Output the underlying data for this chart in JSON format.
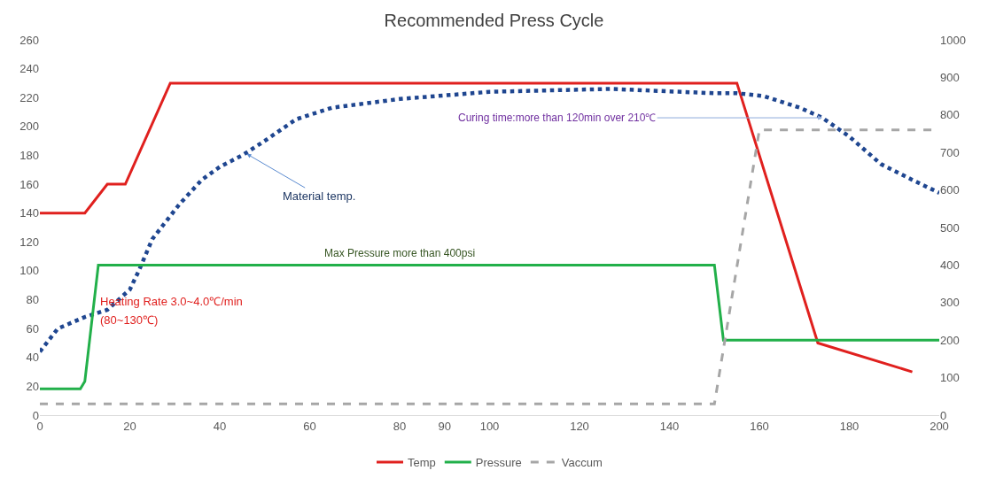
{
  "chart_data": {
    "type": "line",
    "title": "Recommended Press Cycle",
    "xlim": [
      0,
      200
    ],
    "xticks": [
      0,
      20,
      40,
      60,
      80,
      90,
      100,
      120,
      140,
      160,
      180,
      200
    ],
    "ylim": [
      0,
      260
    ],
    "yticks": [
      0,
      20,
      40,
      60,
      80,
      100,
      120,
      140,
      160,
      180,
      200,
      220,
      240,
      260
    ],
    "y2lim": [
      0,
      1000
    ],
    "y2ticks": [
      0,
      100,
      200,
      300,
      400,
      500,
      600,
      700,
      800,
      900,
      1000
    ],
    "legend": "bottom",
    "marker": "none",
    "series": [
      {
        "name": "Temp",
        "color": "#e0201e",
        "line_style": "solid",
        "x": [
          0,
          10,
          15,
          19,
          29,
          155,
          173,
          194
        ],
        "values": [
          140,
          140,
          160,
          160,
          230,
          230,
          50,
          30
        ]
      },
      {
        "name": "Pressure",
        "color": "#22b04a",
        "line_style": "solid",
        "axis": "y2",
        "x": [
          0,
          9,
          10,
          13,
          150,
          152,
          200
        ],
        "values": [
          70,
          70,
          90,
          400,
          400,
          200,
          200
        ]
      },
      {
        "name": "Vaccum",
        "color": "#a6a6a6",
        "line_style": "dashed",
        "axis": "y2",
        "x": [
          0,
          150,
          160,
          200
        ],
        "values": [
          30,
          30,
          760,
          760
        ]
      },
      {
        "color": "#1f4690",
        "line_style": "dotted",
        "x": [
          0,
          4,
          10,
          15,
          20,
          22,
          25,
          31,
          36,
          40,
          45,
          50,
          57,
          65,
          80,
          100,
          127,
          150,
          155,
          161,
          169,
          174,
          180,
          187,
          194,
          200
        ],
        "values": [
          44,
          60,
          68,
          73,
          87,
          100,
          122,
          146,
          163,
          172,
          180,
          190,
          205,
          213,
          219,
          224,
          226,
          223,
          223,
          221,
          213,
          206,
          193,
          174,
          163,
          154
        ]
      }
    ],
    "annotations": [
      {
        "text": "Material temp.",
        "x": 46,
        "y": 181
      },
      {
        "text": "Curing time:more than 120min over 210℃",
        "x": 174,
        "y": 206
      },
      "Max Pressure more than 400psi",
      "Heating Rate 3.0~4.0℃/min",
      "(80~130℃)"
    ]
  }
}
